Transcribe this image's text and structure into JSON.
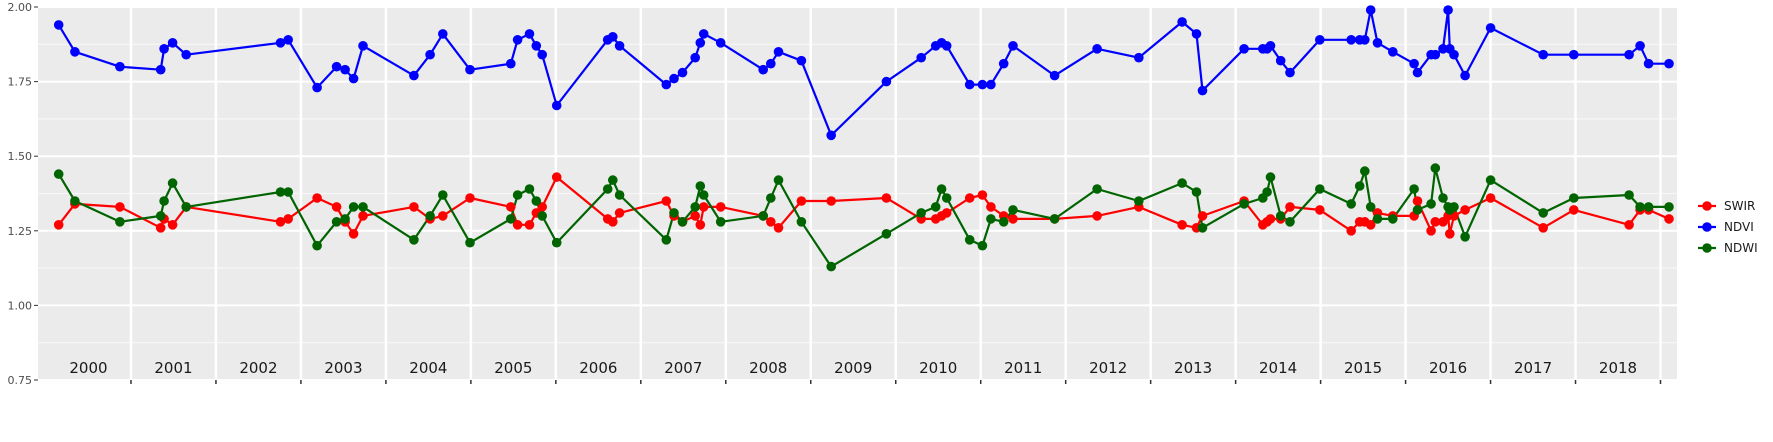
{
  "chart_data": {
    "type": "line",
    "title": "",
    "xlabel": "",
    "ylabel": "",
    "ylim": [
      0.75,
      2.0
    ],
    "yticks": [
      "0.75",
      "1.00",
      "1.25",
      "1.50",
      "1.75",
      "2.00"
    ],
    "xlim": [
      2000.0,
      2019.1
    ],
    "year_labels": [
      "2000",
      "2001",
      "2002",
      "2003",
      "2004",
      "2005",
      "2006",
      "2007",
      "2008",
      "2009",
      "2010",
      "2011",
      "2012",
      "2013",
      "2014",
      "2015",
      "2016",
      "2017",
      "2018"
    ],
    "grid": true,
    "legend_position": "right",
    "series": [
      {
        "name": "SWIR",
        "color": "#ff0000",
        "points": [
          [
            2000.15,
            1.27
          ],
          [
            2000.34,
            1.34
          ],
          [
            2000.87,
            1.33
          ],
          [
            2001.35,
            1.26
          ],
          [
            2001.39,
            1.29
          ],
          [
            2001.49,
            1.27
          ],
          [
            2001.65,
            1.33
          ],
          [
            2002.76,
            1.28
          ],
          [
            2002.85,
            1.29
          ],
          [
            2003.19,
            1.36
          ],
          [
            2003.42,
            1.33
          ],
          [
            2003.52,
            1.28
          ],
          [
            2003.62,
            1.24
          ],
          [
            2003.73,
            1.3
          ],
          [
            2004.33,
            1.33
          ],
          [
            2004.52,
            1.29
          ],
          [
            2004.67,
            1.3
          ],
          [
            2004.99,
            1.36
          ],
          [
            2005.47,
            1.33
          ],
          [
            2005.55,
            1.27
          ],
          [
            2005.69,
            1.27
          ],
          [
            2005.77,
            1.31
          ],
          [
            2005.84,
            1.33
          ],
          [
            2006.01,
            1.43
          ],
          [
            2006.61,
            1.29
          ],
          [
            2006.67,
            1.28
          ],
          [
            2006.75,
            1.31
          ],
          [
            2007.3,
            1.35
          ],
          [
            2007.39,
            1.3
          ],
          [
            2007.49,
            1.28
          ],
          [
            2007.64,
            1.3
          ],
          [
            2007.7,
            1.27
          ],
          [
            2007.74,
            1.33
          ],
          [
            2007.94,
            1.33
          ],
          [
            2008.44,
            1.3
          ],
          [
            2008.53,
            1.28
          ],
          [
            2008.62,
            1.26
          ],
          [
            2008.89,
            1.35
          ],
          [
            2009.24,
            1.35
          ],
          [
            2009.89,
            1.36
          ],
          [
            2010.3,
            1.29
          ],
          [
            2010.47,
            1.29
          ],
          [
            2010.54,
            1.3
          ],
          [
            2010.6,
            1.31
          ],
          [
            2010.87,
            1.36
          ],
          [
            2011.02,
            1.37
          ],
          [
            2011.12,
            1.33
          ],
          [
            2011.27,
            1.3
          ],
          [
            2011.38,
            1.29
          ],
          [
            2011.87,
            1.29
          ],
          [
            2012.37,
            1.3
          ],
          [
            2012.86,
            1.33
          ],
          [
            2013.37,
            1.27
          ],
          [
            2013.54,
            1.26
          ],
          [
            2013.61,
            1.3
          ],
          [
            2014.1,
            1.35
          ],
          [
            2014.32,
            1.27
          ],
          [
            2014.37,
            1.28
          ],
          [
            2014.41,
            1.29
          ],
          [
            2014.53,
            1.29
          ],
          [
            2014.64,
            1.33
          ],
          [
            2014.99,
            1.32
          ],
          [
            2015.36,
            1.25
          ],
          [
            2015.46,
            1.28
          ],
          [
            2015.52,
            1.28
          ],
          [
            2015.59,
            1.27
          ],
          [
            2015.67,
            1.31
          ],
          [
            2015.85,
            1.3
          ],
          [
            2016.1,
            1.3
          ],
          [
            2016.14,
            1.35
          ],
          [
            2016.3,
            1.25
          ],
          [
            2016.35,
            1.28
          ],
          [
            2016.44,
            1.28
          ],
          [
            2016.5,
            1.3
          ],
          [
            2016.52,
            1.24
          ],
          [
            2016.57,
            1.3
          ],
          [
            2016.7,
            1.32
          ],
          [
            2017.0,
            1.36
          ],
          [
            2017.62,
            1.26
          ],
          [
            2017.98,
            1.32
          ],
          [
            2018.63,
            1.27
          ],
          [
            2018.76,
            1.32
          ],
          [
            2018.86,
            1.32
          ],
          [
            2019.1,
            1.29
          ]
        ]
      },
      {
        "name": "NDVI",
        "color": "#0000ff",
        "points": [
          [
            2000.15,
            1.94
          ],
          [
            2000.34,
            1.85
          ],
          [
            2000.87,
            1.8
          ],
          [
            2001.35,
            1.79
          ],
          [
            2001.39,
            1.86
          ],
          [
            2001.49,
            1.88
          ],
          [
            2001.65,
            1.84
          ],
          [
            2002.76,
            1.88
          ],
          [
            2002.85,
            1.89
          ],
          [
            2003.19,
            1.73
          ],
          [
            2003.42,
            1.8
          ],
          [
            2003.52,
            1.79
          ],
          [
            2003.62,
            1.76
          ],
          [
            2003.73,
            1.87
          ],
          [
            2004.33,
            1.77
          ],
          [
            2004.52,
            1.84
          ],
          [
            2004.67,
            1.91
          ],
          [
            2004.99,
            1.79
          ],
          [
            2005.47,
            1.81
          ],
          [
            2005.55,
            1.89
          ],
          [
            2005.69,
            1.91
          ],
          [
            2005.77,
            1.87
          ],
          [
            2005.84,
            1.84
          ],
          [
            2006.01,
            1.67
          ],
          [
            2006.61,
            1.89
          ],
          [
            2006.67,
            1.9
          ],
          [
            2006.75,
            1.87
          ],
          [
            2007.3,
            1.74
          ],
          [
            2007.39,
            1.76
          ],
          [
            2007.49,
            1.78
          ],
          [
            2007.64,
            1.83
          ],
          [
            2007.7,
            1.88
          ],
          [
            2007.74,
            1.91
          ],
          [
            2007.94,
            1.88
          ],
          [
            2008.44,
            1.79
          ],
          [
            2008.53,
            1.81
          ],
          [
            2008.62,
            1.85
          ],
          [
            2008.89,
            1.82
          ],
          [
            2009.24,
            1.57
          ],
          [
            2009.89,
            1.75
          ],
          [
            2010.3,
            1.83
          ],
          [
            2010.47,
            1.87
          ],
          [
            2010.54,
            1.88
          ],
          [
            2010.6,
            1.87
          ],
          [
            2010.87,
            1.74
          ],
          [
            2011.02,
            1.74
          ],
          [
            2011.12,
            1.74
          ],
          [
            2011.27,
            1.81
          ],
          [
            2011.38,
            1.87
          ],
          [
            2011.87,
            1.77
          ],
          [
            2012.37,
            1.86
          ],
          [
            2012.86,
            1.83
          ],
          [
            2013.37,
            1.95
          ],
          [
            2013.54,
            1.91
          ],
          [
            2013.61,
            1.72
          ],
          [
            2014.1,
            1.86
          ],
          [
            2014.32,
            1.86
          ],
          [
            2014.37,
            1.86
          ],
          [
            2014.41,
            1.87
          ],
          [
            2014.53,
            1.82
          ],
          [
            2014.64,
            1.78
          ],
          [
            2014.99,
            1.89
          ],
          [
            2015.36,
            1.89
          ],
          [
            2015.46,
            1.89
          ],
          [
            2015.52,
            1.89
          ],
          [
            2015.59,
            1.99
          ],
          [
            2015.67,
            1.88
          ],
          [
            2015.85,
            1.85
          ],
          [
            2016.1,
            1.81
          ],
          [
            2016.14,
            1.78
          ],
          [
            2016.3,
            1.84
          ],
          [
            2016.35,
            1.84
          ],
          [
            2016.44,
            1.86
          ],
          [
            2016.5,
            1.99
          ],
          [
            2016.52,
            1.86
          ],
          [
            2016.57,
            1.84
          ],
          [
            2016.7,
            1.77
          ],
          [
            2017.0,
            1.93
          ],
          [
            2017.62,
            1.84
          ],
          [
            2017.98,
            1.84
          ],
          [
            2018.63,
            1.84
          ],
          [
            2018.76,
            1.87
          ],
          [
            2018.86,
            1.81
          ],
          [
            2019.1,
            1.81
          ]
        ]
      },
      {
        "name": "NDWI",
        "color": "#006400",
        "points": [
          [
            2000.15,
            1.44
          ],
          [
            2000.34,
            1.35
          ],
          [
            2000.87,
            1.28
          ],
          [
            2001.35,
            1.3
          ],
          [
            2001.39,
            1.35
          ],
          [
            2001.49,
            1.41
          ],
          [
            2001.65,
            1.33
          ],
          [
            2002.76,
            1.38
          ],
          [
            2002.85,
            1.38
          ],
          [
            2003.19,
            1.2
          ],
          [
            2003.42,
            1.28
          ],
          [
            2003.52,
            1.29
          ],
          [
            2003.62,
            1.33
          ],
          [
            2003.73,
            1.33
          ],
          [
            2004.33,
            1.22
          ],
          [
            2004.52,
            1.3
          ],
          [
            2004.67,
            1.37
          ],
          [
            2004.99,
            1.21
          ],
          [
            2005.47,
            1.29
          ],
          [
            2005.55,
            1.37
          ],
          [
            2005.69,
            1.39
          ],
          [
            2005.77,
            1.35
          ],
          [
            2005.84,
            1.3
          ],
          [
            2006.01,
            1.21
          ],
          [
            2006.61,
            1.39
          ],
          [
            2006.67,
            1.42
          ],
          [
            2006.75,
            1.37
          ],
          [
            2007.3,
            1.22
          ],
          [
            2007.39,
            1.31
          ],
          [
            2007.49,
            1.28
          ],
          [
            2007.64,
            1.33
          ],
          [
            2007.7,
            1.4
          ],
          [
            2007.74,
            1.37
          ],
          [
            2007.94,
            1.28
          ],
          [
            2008.44,
            1.3
          ],
          [
            2008.53,
            1.36
          ],
          [
            2008.62,
            1.42
          ],
          [
            2008.89,
            1.28
          ],
          [
            2009.24,
            1.13
          ],
          [
            2009.89,
            1.24
          ],
          [
            2010.3,
            1.31
          ],
          [
            2010.47,
            1.33
          ],
          [
            2010.54,
            1.39
          ],
          [
            2010.6,
            1.36
          ],
          [
            2010.87,
            1.22
          ],
          [
            2011.02,
            1.2
          ],
          [
            2011.12,
            1.29
          ],
          [
            2011.27,
            1.28
          ],
          [
            2011.38,
            1.32
          ],
          [
            2011.87,
            1.29
          ],
          [
            2012.37,
            1.39
          ],
          [
            2012.86,
            1.35
          ],
          [
            2013.37,
            1.41
          ],
          [
            2013.54,
            1.38
          ],
          [
            2013.61,
            1.26
          ],
          [
            2014.1,
            1.34
          ],
          [
            2014.32,
            1.36
          ],
          [
            2014.37,
            1.38
          ],
          [
            2014.41,
            1.43
          ],
          [
            2014.53,
            1.3
          ],
          [
            2014.64,
            1.28
          ],
          [
            2014.99,
            1.39
          ],
          [
            2015.36,
            1.34
          ],
          [
            2015.46,
            1.4
          ],
          [
            2015.52,
            1.45
          ],
          [
            2015.59,
            1.33
          ],
          [
            2015.67,
            1.29
          ],
          [
            2015.85,
            1.29
          ],
          [
            2016.1,
            1.39
          ],
          [
            2016.14,
            1.32
          ],
          [
            2016.3,
            1.34
          ],
          [
            2016.35,
            1.46
          ],
          [
            2016.44,
            1.36
          ],
          [
            2016.5,
            1.33
          ],
          [
            2016.52,
            1.32
          ],
          [
            2016.57,
            1.33
          ],
          [
            2016.7,
            1.23
          ],
          [
            2017.0,
            1.42
          ],
          [
            2017.62,
            1.31
          ],
          [
            2017.98,
            1.36
          ],
          [
            2018.63,
            1.37
          ],
          [
            2018.76,
            1.33
          ],
          [
            2018.86,
            1.33
          ],
          [
            2019.1,
            1.33
          ]
        ]
      }
    ]
  }
}
